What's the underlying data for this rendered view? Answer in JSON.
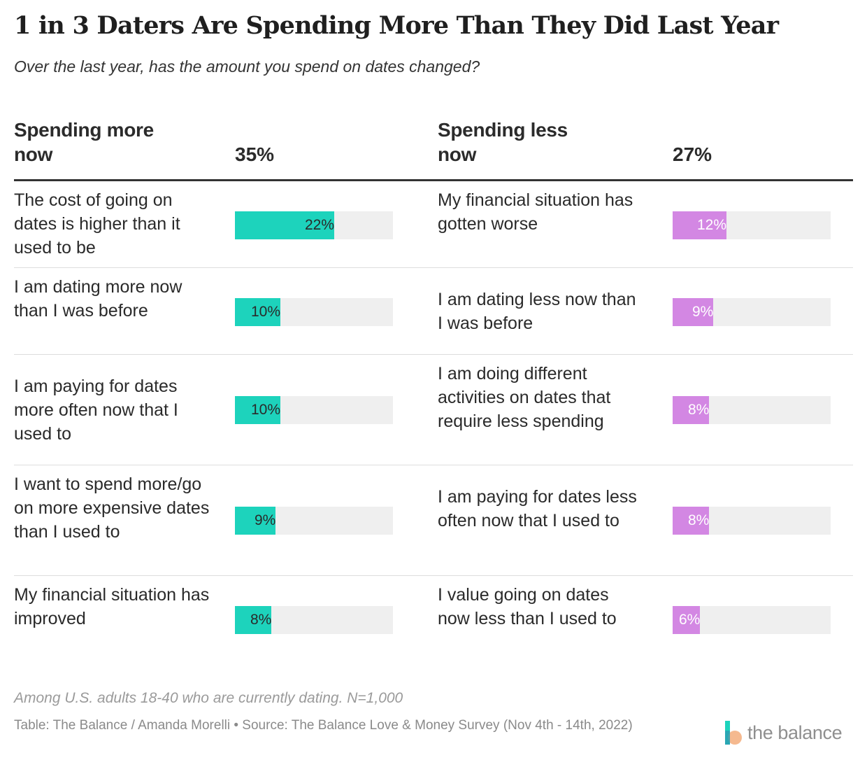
{
  "title": "1 in 3 Daters Are Spending More Than They Did Last Year",
  "subtitle": "Over the last year, has the amount you spend on dates changed?",
  "colors": {
    "more": "#1dd3bc",
    "less": "#d387e3",
    "track": "#efefef"
  },
  "chart_data": {
    "type": "bar",
    "orientation": "horizontal",
    "xlim": [
      0,
      35
    ],
    "columns": [
      {
        "key": "more",
        "heading_lines": [
          "Spending more",
          "now"
        ],
        "total": "35%",
        "color": "#1dd3bc",
        "rows": [
          {
            "label": "The cost of going on dates is higher than it used to be",
            "value": 22,
            "display": "22%"
          },
          {
            "label": "I am dating more now than I was before",
            "value": 10,
            "display": "10%"
          },
          {
            "label": "I am paying for dates more often now that I used to",
            "value": 10,
            "display": "10%"
          },
          {
            "label": "I want to spend more/go on more expensive dates than I used to",
            "value": 9,
            "display": "9%"
          },
          {
            "label": "My financial situation has improved",
            "value": 8,
            "display": "8%"
          }
        ]
      },
      {
        "key": "less",
        "heading_lines": [
          "Spending less",
          "now"
        ],
        "total": "27%",
        "color": "#d387e3",
        "rows": [
          {
            "label": "My financial situation has gotten worse",
            "value": 12,
            "display": "12%"
          },
          {
            "label": "I am dating less now than I was before",
            "value": 9,
            "display": "9%"
          },
          {
            "label": "I am doing different activities on dates that require less spending",
            "value": 8,
            "display": "8%"
          },
          {
            "label": "I am paying for dates less often now that I used to",
            "value": 8,
            "display": "8%"
          },
          {
            "label": "I value going on dates now less than I used to",
            "value": 6,
            "display": "6%"
          }
        ]
      }
    ]
  },
  "footer": {
    "note": "Among U.S. adults 18-40 who are currently dating. N=1,000",
    "source": "Table: The Balance / Amanda Morelli • Source: The Balance Love & Money Survey (Nov 4th - 14th, 2022)",
    "logo_text": "the balance"
  }
}
